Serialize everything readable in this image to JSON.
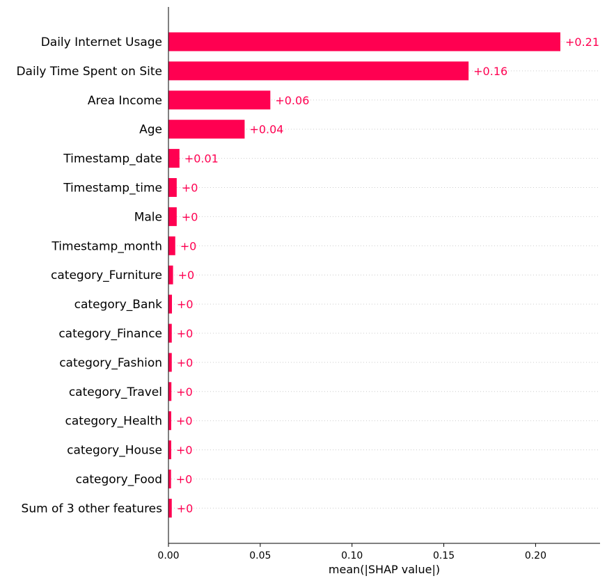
{
  "chart_data": {
    "type": "bar",
    "orientation": "horizontal",
    "categories": [
      "Daily Internet Usage",
      "Daily Time Spent on Site",
      "Area Income",
      "Age",
      "Timestamp_date",
      "Timestamp_time",
      "Male",
      "Timestamp_month",
      "category_Furniture",
      "category_Bank",
      "category_Finance",
      "category_Fashion",
      "category_Travel",
      "category_Health",
      "category_House",
      "category_Food",
      "Sum of 3 other features"
    ],
    "values": [
      0.2135,
      0.1635,
      0.0555,
      0.0415,
      0.006,
      0.0045,
      0.0045,
      0.0037,
      0.0025,
      0.0019,
      0.0018,
      0.0018,
      0.0016,
      0.0015,
      0.0015,
      0.0014,
      0.0018
    ],
    "value_labels": [
      "+0.21",
      "+0.16",
      "+0.06",
      "+0.04",
      "+0.01",
      "+0",
      "+0",
      "+0",
      "+0",
      "+0",
      "+0",
      "+0",
      "+0",
      "+0",
      "+0",
      "+0",
      "+0"
    ],
    "xlabel": "mean(|SHAP value|)",
    "xticks": [
      "0.00",
      "0.05",
      "0.10",
      "0.15",
      "0.20"
    ],
    "xtick_values": [
      0,
      0.05,
      0.1,
      0.15,
      0.2
    ],
    "xlim": [
      0,
      0.2348
    ],
    "bar_color": "#ff0051",
    "gridlines": "dotted-horizontal"
  }
}
